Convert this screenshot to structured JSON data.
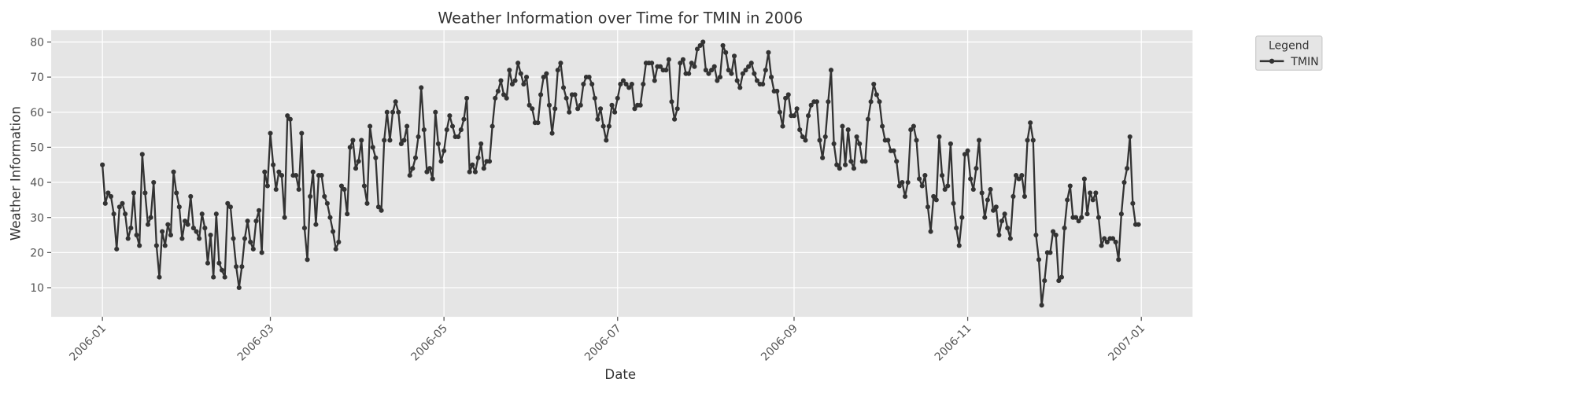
{
  "chart_data": {
    "type": "line",
    "title": "Weather Information over Time for TMIN in 2006",
    "x_label": "Date",
    "y_label": "Weather Information",
    "legend_title": "Legend",
    "legend_position": "outside upper right",
    "grid": true,
    "xlim": [
      "2005-12-14",
      "2007-01-19"
    ],
    "xticks": [
      "2006-01",
      "2006-03",
      "2006-05",
      "2006-07",
      "2006-09",
      "2006-11",
      "2007-01"
    ],
    "ylim": [
      1.7,
      83.4
    ],
    "yticks": [
      10,
      20,
      30,
      40,
      50,
      60,
      70,
      80
    ],
    "x": [
      "2006-01-01",
      "2006-01-02",
      "2006-01-03",
      "2006-01-04",
      "2006-01-05",
      "2006-01-06",
      "2006-01-07",
      "2006-01-08",
      "2006-01-09",
      "2006-01-10",
      "2006-01-11",
      "2006-01-12",
      "2006-01-13",
      "2006-01-14",
      "2006-01-15",
      "2006-01-16",
      "2006-01-17",
      "2006-01-18",
      "2006-01-19",
      "2006-01-20",
      "2006-01-21",
      "2006-01-22",
      "2006-01-23",
      "2006-01-24",
      "2006-01-25",
      "2006-01-26",
      "2006-01-27",
      "2006-01-28",
      "2006-01-29",
      "2006-01-30",
      "2006-01-31",
      "2006-02-01",
      "2006-02-02",
      "2006-02-03",
      "2006-02-04",
      "2006-02-05",
      "2006-02-06",
      "2006-02-07",
      "2006-02-08",
      "2006-02-09",
      "2006-02-10",
      "2006-02-11",
      "2006-02-12",
      "2006-02-13",
      "2006-02-14",
      "2006-02-15",
      "2006-02-16",
      "2006-02-17",
      "2006-02-18",
      "2006-02-19",
      "2006-02-20",
      "2006-02-21",
      "2006-02-22",
      "2006-02-23",
      "2006-02-24",
      "2006-02-25",
      "2006-02-26",
      "2006-02-27",
      "2006-02-28",
      "2006-03-01",
      "2006-03-02",
      "2006-03-03",
      "2006-03-04",
      "2006-03-05",
      "2006-03-06",
      "2006-03-07",
      "2006-03-08",
      "2006-03-09",
      "2006-03-10",
      "2006-03-11",
      "2006-03-12",
      "2006-03-13",
      "2006-03-14",
      "2006-03-15",
      "2006-03-16",
      "2006-03-17",
      "2006-03-18",
      "2006-03-19",
      "2006-03-20",
      "2006-03-21",
      "2006-03-22",
      "2006-03-23",
      "2006-03-24",
      "2006-03-25",
      "2006-03-26",
      "2006-03-27",
      "2006-03-28",
      "2006-03-29",
      "2006-03-30",
      "2006-03-31",
      "2006-04-01",
      "2006-04-02",
      "2006-04-03",
      "2006-04-04",
      "2006-04-05",
      "2006-04-06",
      "2006-04-07",
      "2006-04-08",
      "2006-04-09",
      "2006-04-10",
      "2006-04-11",
      "2006-04-12",
      "2006-04-13",
      "2006-04-14",
      "2006-04-15",
      "2006-04-16",
      "2006-04-17",
      "2006-04-18",
      "2006-04-19",
      "2006-04-20",
      "2006-04-21",
      "2006-04-22",
      "2006-04-23",
      "2006-04-24",
      "2006-04-25",
      "2006-04-26",
      "2006-04-27",
      "2006-04-28",
      "2006-04-29",
      "2006-04-30",
      "2006-05-01",
      "2006-05-02",
      "2006-05-03",
      "2006-05-04",
      "2006-05-05",
      "2006-05-06",
      "2006-05-07",
      "2006-05-08",
      "2006-05-09",
      "2006-05-10",
      "2006-05-11",
      "2006-05-12",
      "2006-05-13",
      "2006-05-14",
      "2006-05-15",
      "2006-05-16",
      "2006-05-17",
      "2006-05-18",
      "2006-05-19",
      "2006-05-20",
      "2006-05-21",
      "2006-05-22",
      "2006-05-23",
      "2006-05-24",
      "2006-05-25",
      "2006-05-26",
      "2006-05-27",
      "2006-05-28",
      "2006-05-29",
      "2006-05-30",
      "2006-05-31",
      "2006-06-01",
      "2006-06-02",
      "2006-06-03",
      "2006-06-04",
      "2006-06-05",
      "2006-06-06",
      "2006-06-07",
      "2006-06-08",
      "2006-06-09",
      "2006-06-10",
      "2006-06-11",
      "2006-06-12",
      "2006-06-13",
      "2006-06-14",
      "2006-06-15",
      "2006-06-16",
      "2006-06-17",
      "2006-06-18",
      "2006-06-19",
      "2006-06-20",
      "2006-06-21",
      "2006-06-22",
      "2006-06-23",
      "2006-06-24",
      "2006-06-25",
      "2006-06-26",
      "2006-06-27",
      "2006-06-28",
      "2006-06-29",
      "2006-06-30",
      "2006-07-01",
      "2006-07-02",
      "2006-07-03",
      "2006-07-04",
      "2006-07-05",
      "2006-07-06",
      "2006-07-07",
      "2006-07-08",
      "2006-07-09",
      "2006-07-10",
      "2006-07-11",
      "2006-07-12",
      "2006-07-13",
      "2006-07-14",
      "2006-07-15",
      "2006-07-16",
      "2006-07-17",
      "2006-07-18",
      "2006-07-19",
      "2006-07-20",
      "2006-07-21",
      "2006-07-22",
      "2006-07-23",
      "2006-07-24",
      "2006-07-25",
      "2006-07-26",
      "2006-07-27",
      "2006-07-28",
      "2006-07-29",
      "2006-07-30",
      "2006-07-31",
      "2006-08-01",
      "2006-08-02",
      "2006-08-03",
      "2006-08-04",
      "2006-08-05",
      "2006-08-06",
      "2006-08-07",
      "2006-08-08",
      "2006-08-09",
      "2006-08-10",
      "2006-08-11",
      "2006-08-12",
      "2006-08-13",
      "2006-08-14",
      "2006-08-15",
      "2006-08-16",
      "2006-08-17",
      "2006-08-18",
      "2006-08-19",
      "2006-08-20",
      "2006-08-21",
      "2006-08-22",
      "2006-08-23",
      "2006-08-24",
      "2006-08-25",
      "2006-08-26",
      "2006-08-27",
      "2006-08-28",
      "2006-08-29",
      "2006-08-30",
      "2006-08-31",
      "2006-09-01",
      "2006-09-02",
      "2006-09-03",
      "2006-09-04",
      "2006-09-05",
      "2006-09-06",
      "2006-09-07",
      "2006-09-08",
      "2006-09-09",
      "2006-09-10",
      "2006-09-11",
      "2006-09-12",
      "2006-09-13",
      "2006-09-14",
      "2006-09-15",
      "2006-09-16",
      "2006-09-17",
      "2006-09-18",
      "2006-09-19",
      "2006-09-20",
      "2006-09-21",
      "2006-09-22",
      "2006-09-23",
      "2006-09-24",
      "2006-09-25",
      "2006-09-26",
      "2006-09-27",
      "2006-09-28",
      "2006-09-29",
      "2006-09-30",
      "2006-10-01",
      "2006-10-02",
      "2006-10-03",
      "2006-10-04",
      "2006-10-05",
      "2006-10-06",
      "2006-10-07",
      "2006-10-08",
      "2006-10-09",
      "2006-10-10",
      "2006-10-11",
      "2006-10-12",
      "2006-10-13",
      "2006-10-14",
      "2006-10-15",
      "2006-10-16",
      "2006-10-17",
      "2006-10-18",
      "2006-10-19",
      "2006-10-20",
      "2006-10-21",
      "2006-10-22",
      "2006-10-23",
      "2006-10-24",
      "2006-10-25",
      "2006-10-26",
      "2006-10-27",
      "2006-10-28",
      "2006-10-29",
      "2006-10-30",
      "2006-10-31",
      "2006-11-01",
      "2006-11-02",
      "2006-11-03",
      "2006-11-04",
      "2006-11-05",
      "2006-11-06",
      "2006-11-07",
      "2006-11-08",
      "2006-11-09",
      "2006-11-10",
      "2006-11-11",
      "2006-11-12",
      "2006-11-13",
      "2006-11-14",
      "2006-11-15",
      "2006-11-16",
      "2006-11-17",
      "2006-11-18",
      "2006-11-19",
      "2006-11-20",
      "2006-11-21",
      "2006-11-22",
      "2006-11-23",
      "2006-11-24",
      "2006-11-25",
      "2006-11-26",
      "2006-11-27",
      "2006-11-28",
      "2006-11-29",
      "2006-11-30",
      "2006-12-01",
      "2006-12-02",
      "2006-12-03",
      "2006-12-04",
      "2006-12-05",
      "2006-12-06",
      "2006-12-07",
      "2006-12-08",
      "2006-12-09",
      "2006-12-10",
      "2006-12-11",
      "2006-12-12",
      "2006-12-13",
      "2006-12-14",
      "2006-12-15",
      "2006-12-16",
      "2006-12-17",
      "2006-12-18",
      "2006-12-19",
      "2006-12-20",
      "2006-12-21",
      "2006-12-22",
      "2006-12-23",
      "2006-12-24",
      "2006-12-25",
      "2006-12-26",
      "2006-12-27",
      "2006-12-28",
      "2006-12-29",
      "2006-12-30",
      "2006-12-31"
    ],
    "series": [
      {
        "name": "TMIN",
        "color": "#333333",
        "values": [
          45,
          34,
          37,
          36,
          31,
          21,
          33,
          34,
          31,
          24,
          27,
          37,
          25,
          22,
          48,
          37,
          28,
          30,
          40,
          22,
          13,
          26,
          22,
          28,
          25,
          43,
          37,
          33,
          24,
          29,
          28,
          36,
          27,
          26,
          24,
          31,
          27,
          17,
          25,
          13,
          31,
          17,
          15,
          13,
          34,
          33,
          24,
          16,
          10,
          16,
          24,
          29,
          23,
          21,
          29,
          32,
          20,
          43,
          39,
          54,
          45,
          38,
          43,
          42,
          30,
          59,
          58,
          42,
          42,
          38,
          54,
          27,
          18,
          36,
          43,
          28,
          42,
          42,
          36,
          34,
          30,
          26,
          21,
          23,
          39,
          38,
          31,
          50,
          52,
          44,
          46,
          52,
          39,
          34,
          56,
          50,
          47,
          33,
          32,
          52,
          60,
          52,
          60,
          63,
          60,
          51,
          52,
          56,
          42,
          44,
          47,
          53,
          67,
          55,
          43,
          44,
          41,
          60,
          51,
          46,
          49,
          55,
          59,
          56,
          53,
          53,
          55,
          58,
          64,
          43,
          45,
          43,
          47,
          51,
          44,
          46,
          46,
          56,
          64,
          66,
          69,
          65,
          64,
          72,
          68,
          69,
          74,
          71,
          68,
          70,
          62,
          61,
          57,
          57,
          65,
          70,
          71,
          62,
          54,
          61,
          72,
          74,
          67,
          64,
          60,
          65,
          65,
          61,
          62,
          68,
          70,
          70,
          68,
          64,
          58,
          61,
          56,
          52,
          56,
          62,
          60,
          64,
          68,
          69,
          68,
          67,
          68,
          61,
          62,
          62,
          68,
          74,
          74,
          74,
          69,
          73,
          73,
          72,
          72,
          75,
          63,
          58,
          61,
          74,
          75,
          71,
          71,
          74,
          73,
          78,
          79,
          80,
          72,
          71,
          72,
          73,
          69,
          70,
          79,
          77,
          72,
          71,
          76,
          69,
          67,
          71,
          72,
          73,
          74,
          71,
          69,
          68,
          68,
          72,
          77,
          70,
          66,
          66,
          60,
          56,
          64,
          65,
          59,
          59,
          61,
          55,
          53,
          52,
          59,
          62,
          63,
          63,
          52,
          47,
          53,
          63,
          72,
          51,
          45,
          44,
          56,
          45,
          55,
          46,
          44,
          53,
          51,
          46,
          46,
          58,
          63,
          68,
          65,
          63,
          56,
          52,
          52,
          49,
          49,
          46,
          39,
          40,
          36,
          40,
          55,
          56,
          52,
          41,
          39,
          42,
          33,
          26,
          36,
          35,
          53,
          42,
          38,
          39,
          51,
          34,
          27,
          22,
          30,
          48,
          49,
          41,
          38,
          44,
          52,
          37,
          30,
          35,
          38,
          32,
          33,
          25,
          29,
          31,
          27,
          24,
          36,
          42,
          41,
          42,
          36,
          52,
          57,
          52,
          25,
          18,
          5,
          12,
          20,
          20,
          26,
          25,
          12,
          13,
          27,
          35,
          39,
          30,
          30,
          29,
          30,
          41,
          31,
          37,
          35,
          37,
          30,
          22,
          24,
          23,
          24,
          24,
          23,
          18,
          31,
          40,
          44,
          53,
          34,
          28,
          28
        ]
      }
    ]
  }
}
